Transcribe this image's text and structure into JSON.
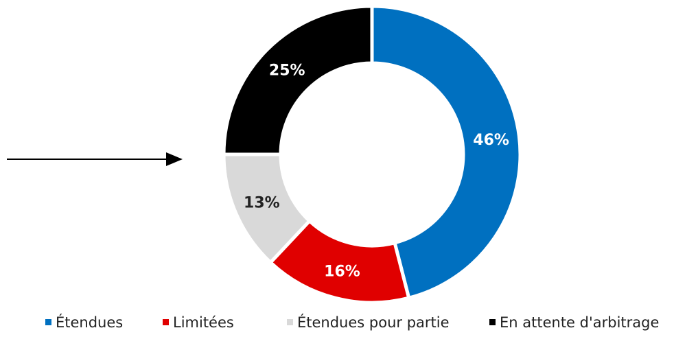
{
  "chart_data": {
    "type": "donut",
    "categories": [
      "Étendues",
      "Limitées",
      "Étendues pour partie",
      "En attente d'arbitrage"
    ],
    "values": [
      46,
      16,
      13,
      25
    ],
    "value_labels": [
      "46%",
      "16%",
      "13%",
      "25%"
    ],
    "colors": [
      "#0070c0",
      "#e00000",
      "#d9d9d9",
      "#000000"
    ],
    "legend": "bottom"
  }
}
